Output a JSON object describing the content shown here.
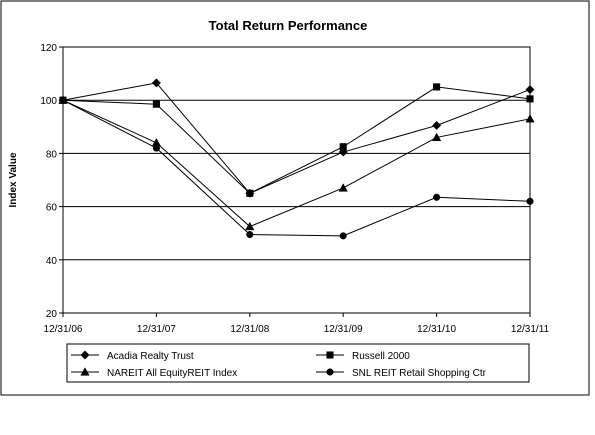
{
  "chart_data": {
    "type": "line",
    "title": "Total Return Performance",
    "ylabel": "Index Value",
    "xlabel": "",
    "categories": [
      "12/31/06",
      "12/31/07",
      "12/31/08",
      "12/31/09",
      "12/31/10",
      "12/31/11"
    ],
    "ylim": [
      20,
      120
    ],
    "yticks": [
      20,
      40,
      60,
      80,
      100,
      120
    ],
    "grid": true,
    "legend_position": "bottom",
    "series": [
      {
        "name": "Acadia Realty Trust",
        "marker": "diamond",
        "values": [
          100,
          106.5,
          65,
          80.5,
          90.5,
          104
        ]
      },
      {
        "name": "Russell 2000",
        "marker": "square",
        "values": [
          100,
          98.5,
          65,
          82.5,
          105,
          100.5
        ]
      },
      {
        "name": "NAREIT All EquityREIT Index",
        "marker": "triangle",
        "values": [
          100,
          84,
          52.5,
          67,
          86,
          93
        ]
      },
      {
        "name": "SNL REIT Retail Shopping Ctr",
        "marker": "circle",
        "values": [
          100,
          82,
          49.5,
          49,
          63.5,
          62
        ]
      }
    ]
  }
}
